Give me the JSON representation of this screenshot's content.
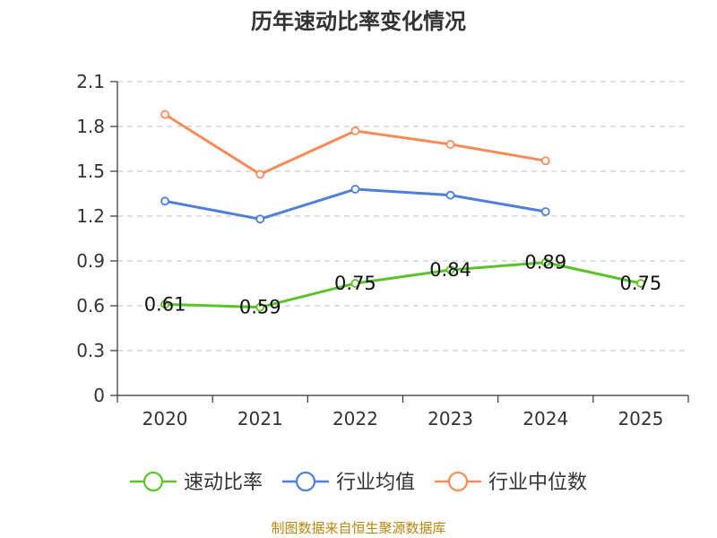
{
  "chart_data": {
    "type": "line",
    "title": "历年速动比率变化情况",
    "categories": [
      "2020",
      "2021",
      "2022",
      "2023",
      "2024",
      "2025"
    ],
    "yticks": [
      "0",
      "0.3",
      "0.6",
      "0.9",
      "1.2",
      "1.5",
      "1.8",
      "2.1"
    ],
    "ylim": [
      0,
      2.1
    ],
    "grid": true,
    "legend_position": "bottom",
    "series": [
      {
        "name": "速动比率",
        "color": "#5bc22a",
        "show_labels": true,
        "values": [
          0.61,
          0.59,
          0.75,
          0.84,
          0.89,
          0.75
        ],
        "labels": [
          "0.61",
          "0.59",
          "0.75",
          "0.84",
          "0.89",
          "0.75"
        ]
      },
      {
        "name": "行业均值",
        "color": "#4f7fdb",
        "show_labels": false,
        "values": [
          1.3,
          1.18,
          1.38,
          1.34,
          1.23,
          null
        ]
      },
      {
        "name": "行业中位数",
        "color": "#f78c5a",
        "show_labels": false,
        "values": [
          1.88,
          1.48,
          1.77,
          1.68,
          1.57,
          null
        ]
      }
    ]
  },
  "footer": "制图数据来自恒生聚源数据库"
}
